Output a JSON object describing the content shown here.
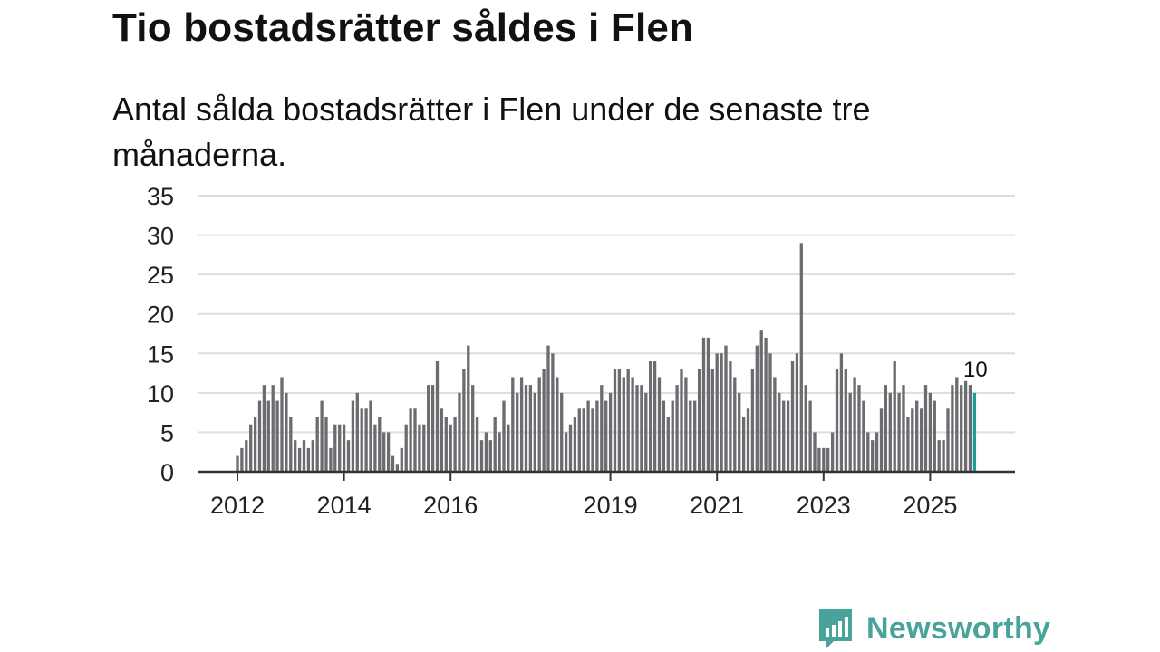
{
  "title": "Tio bostadsrätter såldes i Flen",
  "subtitle": "Antal sålda bostadsrätter i Flen under de senaste tre månaderna.",
  "brand": {
    "name": "Newsworthy",
    "logo_icon": "bar-chart-speech-bubble-icon"
  },
  "colors": {
    "bar": "#6b6b70",
    "highlight": "#1a9e96",
    "grid": "#dddddd",
    "axis": "#333333",
    "brand": "#4aa39a"
  },
  "chart_data": {
    "type": "bar",
    "title": "Tio bostadsrätter såldes i Flen",
    "subtitle": "Antal sålda bostadsrätter i Flen under de senaste tre månaderna.",
    "xlabel": "",
    "ylabel": "",
    "ylim": [
      0,
      35
    ],
    "yticks": [
      0,
      5,
      10,
      15,
      20,
      25,
      30,
      35
    ],
    "grid": true,
    "x_start": "2012-01",
    "x_ticks": [
      {
        "label": "2012",
        "month_index": 0
      },
      {
        "label": "2014",
        "month_index": 24
      },
      {
        "label": "2016",
        "month_index": 48
      },
      {
        "label": "2019",
        "month_index": 84
      },
      {
        "label": "2021",
        "month_index": 108
      },
      {
        "label": "2023",
        "month_index": 132
      },
      {
        "label": "2025",
        "month_index": 156
      }
    ],
    "values": [
      2,
      3,
      4,
      6,
      7,
      9,
      11,
      9,
      11,
      9,
      12,
      10,
      7,
      4,
      3,
      4,
      3,
      4,
      7,
      9,
      7,
      3,
      6,
      6,
      6,
      4,
      9,
      10,
      8,
      8,
      9,
      6,
      7,
      5,
      5,
      2,
      1,
      3,
      6,
      8,
      8,
      6,
      6,
      11,
      11,
      14,
      8,
      7,
      6,
      7,
      10,
      13,
      16,
      11,
      7,
      4,
      5,
      4,
      7,
      5,
      9,
      6,
      12,
      10,
      12,
      11,
      11,
      10,
      12,
      13,
      16,
      15,
      12,
      10,
      5,
      6,
      7,
      8,
      8,
      9,
      8,
      9,
      11,
      9,
      10,
      13,
      13,
      12,
      13,
      12,
      11,
      11,
      10,
      14,
      14,
      12,
      9,
      7,
      9,
      11,
      13,
      12,
      9,
      9,
      13,
      17,
      17,
      13,
      15,
      15,
      16,
      14,
      12,
      10,
      7,
      8,
      13,
      16,
      18,
      17,
      15,
      12,
      10,
      9,
      9,
      14,
      15,
      29,
      11,
      9,
      5,
      3,
      3,
      3,
      5,
      13,
      15,
      13,
      10,
      12,
      11,
      9,
      5,
      4,
      5,
      8,
      11,
      10,
      14,
      10,
      11,
      7,
      8,
      9,
      8,
      11,
      10,
      9,
      4,
      4,
      8,
      11,
      12,
      11,
      11.5,
      11,
      10
    ],
    "highlight_index": 166,
    "annotations": [
      {
        "text": "10",
        "month_index": 166
      }
    ]
  }
}
